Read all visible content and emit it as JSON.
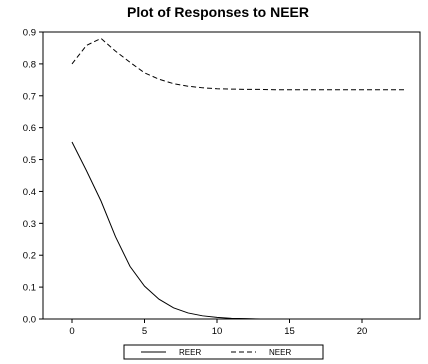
{
  "chart_data": {
    "type": "line",
    "title": "Plot of Responses to NEER",
    "xlabel": "",
    "ylabel": "",
    "xlim": [
      -2,
      24
    ],
    "ylim": [
      0.0,
      0.9
    ],
    "x_ticks": [
      0,
      5,
      10,
      15,
      20
    ],
    "y_ticks": [
      0.0,
      0.1,
      0.2,
      0.3,
      0.4,
      0.5,
      0.6,
      0.7,
      0.8,
      0.9
    ],
    "x_tick_labels": [
      "0",
      "5",
      "10",
      "15",
      "20"
    ],
    "y_tick_labels": [
      "0.0",
      "0.1",
      "0.2",
      "0.3",
      "0.4",
      "0.5",
      "0.6",
      "0.7",
      "0.8",
      "0.9"
    ],
    "grid": false,
    "legend_position": "bottom",
    "x": [
      0,
      1,
      2,
      3,
      4,
      5,
      6,
      7,
      8,
      9,
      10,
      11,
      12,
      13,
      14,
      15,
      16,
      17,
      18,
      19,
      20,
      21,
      22,
      23
    ],
    "series": [
      {
        "name": "REER",
        "style": "solid",
        "color": "#000000",
        "values": [
          0.555,
          0.465,
          0.37,
          0.258,
          0.165,
          0.103,
          0.062,
          0.035,
          0.019,
          0.01,
          0.005,
          0.002,
          0.001,
          0.0,
          0.0,
          0.0,
          0.0,
          0.0,
          0.0,
          0.0,
          0.0,
          0.0,
          0.0,
          0.0
        ]
      },
      {
        "name": "NEER",
        "style": "dashed",
        "color": "#000000",
        "values": [
          0.8,
          0.858,
          0.88,
          0.84,
          0.805,
          0.772,
          0.752,
          0.738,
          0.73,
          0.725,
          0.722,
          0.721,
          0.72,
          0.72,
          0.719,
          0.719,
          0.719,
          0.719,
          0.719,
          0.719,
          0.719,
          0.719,
          0.719,
          0.719
        ]
      }
    ]
  }
}
